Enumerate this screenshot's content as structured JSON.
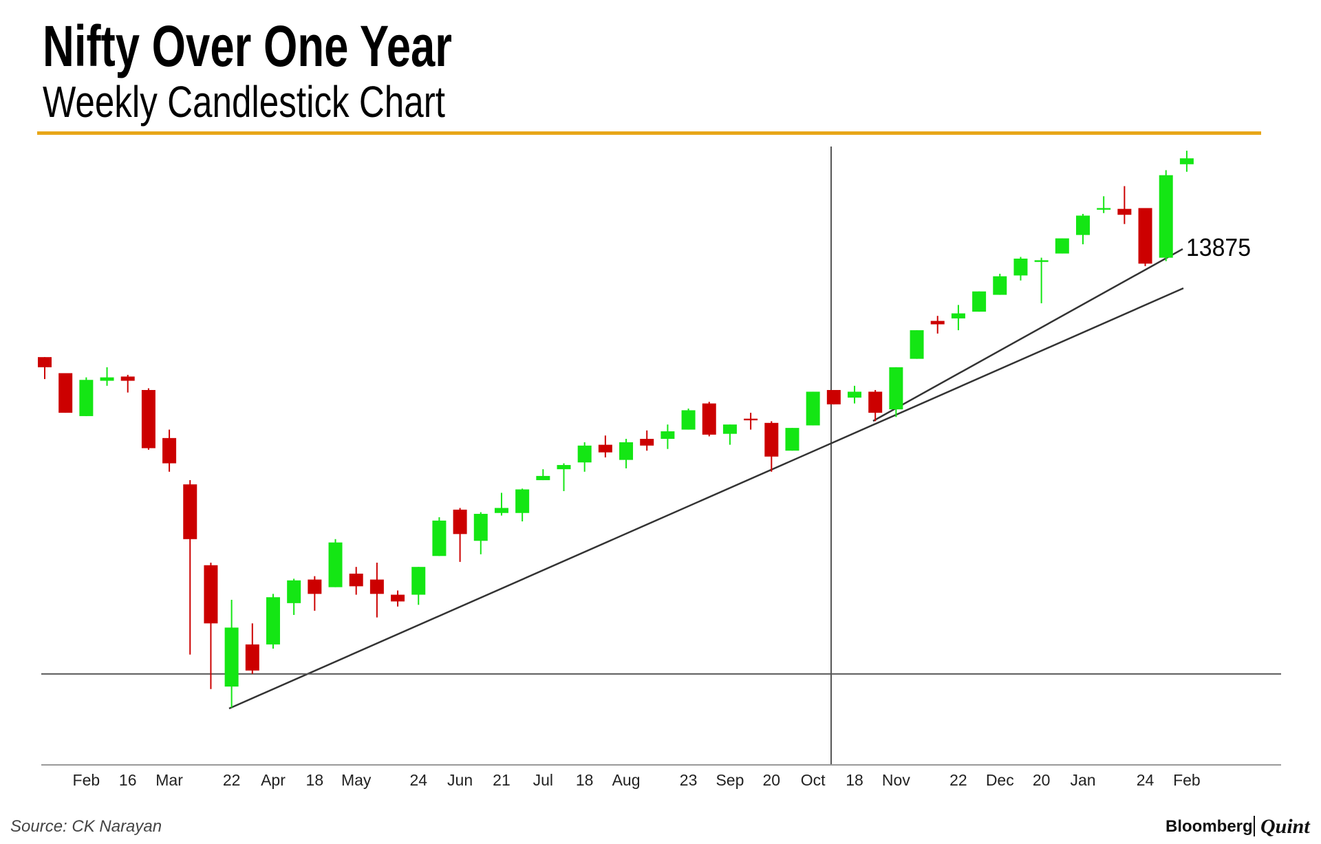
{
  "chart_data": {
    "type": "candlestick",
    "title": "Nifty Over One Year",
    "subtitle": "Weekly Candlestick Chart",
    "categories": [
      null,
      null,
      "Feb",
      null,
      "16",
      null,
      "Mar",
      null,
      null,
      "22",
      null,
      "Apr",
      null,
      "18",
      null,
      "May",
      null,
      null,
      "24",
      null,
      "Jun",
      null,
      "21",
      null,
      "Jul",
      null,
      "18",
      null,
      "Aug",
      null,
      null,
      "23",
      null,
      "Sep",
      null,
      "20",
      null,
      "Oct",
      null,
      "18",
      null,
      "Nov",
      null,
      null,
      "22",
      null,
      "Dec",
      null,
      "20",
      null,
      "Jan",
      null,
      null,
      "24",
      null,
      "Feb"
    ],
    "open": [
      12386,
      12150,
      11518,
      12038,
      12100,
      11902,
      11195,
      10513,
      9323,
      7537,
      8157,
      8157,
      8765,
      9112,
      9000,
      9199,
      9112,
      8889,
      8889,
      9459,
      10141,
      9682,
      10092,
      10092,
      10575,
      10736,
      10836,
      11096,
      10873,
      11183,
      11183,
      11319,
      11704,
      11257,
      11480,
      11418,
      11009,
      11381,
      11902,
      11790,
      11877,
      11617,
      12361,
      12919,
      12956,
      13055,
      13303,
      13588,
      13787,
      13911,
      14184,
      14556,
      14568,
      14580,
      13849,
      15225
    ],
    "high": [
      12386,
      12150,
      12088,
      12237,
      12125,
      11927,
      11319,
      10575,
      9360,
      8814,
      8467,
      8901,
      9124,
      9162,
      9707,
      9298,
      9360,
      8951,
      9298,
      10030,
      10166,
      10104,
      10389,
      10451,
      10736,
      10823,
      11133,
      11232,
      11183,
      11307,
      11394,
      11629,
      11728,
      11394,
      11567,
      11443,
      11344,
      11877,
      11902,
      11964,
      11902,
      12237,
      12782,
      12993,
      13154,
      13353,
      13613,
      13861,
      13849,
      14134,
      14494,
      14754,
      14903,
      14580,
      15138,
      15424
    ],
    "low": [
      12063,
      11567,
      11518,
      11964,
      11865,
      11022,
      10699,
      8008,
      7500,
      7227,
      7723,
      8095,
      8591,
      8653,
      9000,
      8889,
      8554,
      8715,
      8740,
      9459,
      9372,
      9484,
      10054,
      9968,
      10575,
      10414,
      10699,
      10910,
      10749,
      11009,
      11034,
      11319,
      11220,
      11096,
      11319,
      10699,
      11009,
      11381,
      11691,
      11704,
      11443,
      11505,
      12361,
      12733,
      12782,
      13055,
      13303,
      13514,
      13179,
      13911,
      14047,
      14506,
      14345,
      13725,
      13799,
      15114
    ],
    "close": [
      12237,
      11567,
      12051,
      12088,
      12038,
      11046,
      10823,
      9707,
      8467,
      8405,
      7773,
      8852,
      9100,
      8901,
      9658,
      9013,
      8901,
      8790,
      9298,
      9980,
      9782,
      10079,
      10166,
      10439,
      10637,
      10798,
      11084,
      10984,
      11133,
      11084,
      11294,
      11604,
      11245,
      11394,
      11456,
      10922,
      11344,
      11877,
      11691,
      11877,
      11567,
      12237,
      12782,
      12869,
      13030,
      13353,
      13576,
      13836,
      13812,
      14134,
      14469,
      14580,
      14481,
      13762,
      15064,
      15312
    ],
    "up_color": "#14e614",
    "down_color": "#cc0000",
    "ylim": [
      6384,
      15486
    ],
    "hline": 7723,
    "annotation": 13875,
    "source": "Source: CK Narayan",
    "brand": "Bloomberg",
    "brand_2": "Quint"
  }
}
